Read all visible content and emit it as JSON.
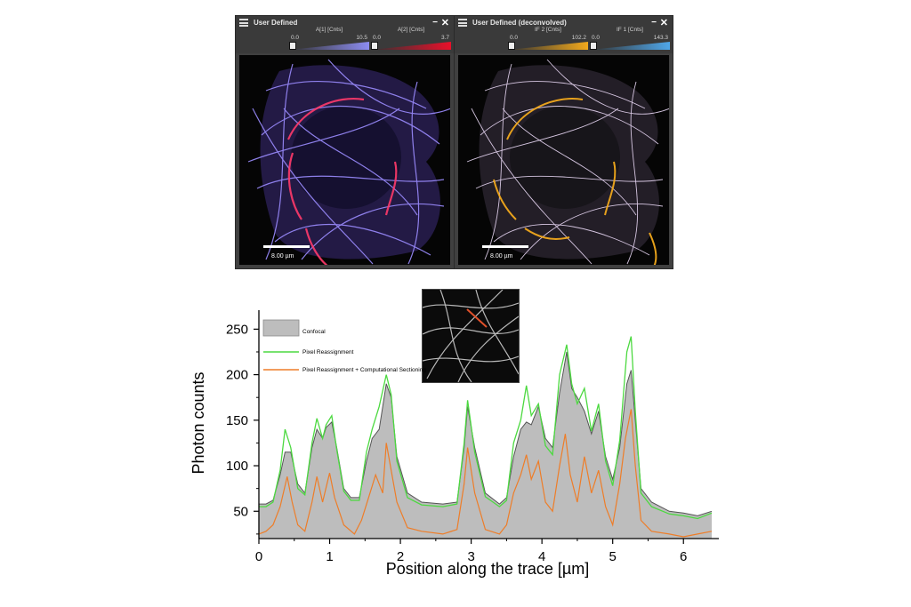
{
  "panels": {
    "left": {
      "title": "User Defined",
      "channels": [
        {
          "label": "A[1] [Cnts]",
          "min": "0.0",
          "max": "10.5",
          "color": "#8c8cf0"
        },
        {
          "label": "A[2] [Cnts]",
          "min": "0.0",
          "max": "3.7",
          "color": "#e8102a"
        }
      ],
      "scale_label": "8.00 µm"
    },
    "right": {
      "title": "User Defined (deconvolved)",
      "channels": [
        {
          "label": "IF 2 [Cnts]",
          "min": "0.0",
          "max": "102.2",
          "color": "#f2a91c"
        },
        {
          "label": "IF 1 [Cnts]",
          "min": "0.0",
          "max": "143.3",
          "color": "#4fa6e8"
        }
      ],
      "scale_label": "8.00 µm"
    }
  },
  "colors": {
    "confocal_fill": "#bdbdbd",
    "confocal_line": "#555555",
    "pixel_reassignment": "#4cd940",
    "computational_sectioning": "#ee7d28",
    "panel_header": "#3a3a3a"
  },
  "chart_data": {
    "type": "area",
    "xlabel": "Position along the trace [µm]",
    "ylabel": "Photon counts",
    "xlim": [
      0,
      6.5
    ],
    "ylim": [
      20,
      265
    ],
    "xticks": [
      0,
      1,
      2,
      3,
      4,
      5,
      6
    ],
    "yticks": [
      50,
      100,
      150,
      200,
      250
    ],
    "legend_position": "top-left",
    "series": [
      {
        "name": "Confocal",
        "style": "filled-area",
        "points": [
          [
            0,
            58
          ],
          [
            0.1,
            58
          ],
          [
            0.2,
            62
          ],
          [
            0.3,
            90
          ],
          [
            0.37,
            115
          ],
          [
            0.45,
            115
          ],
          [
            0.55,
            80
          ],
          [
            0.65,
            70
          ],
          [
            0.75,
            120
          ],
          [
            0.82,
            140
          ],
          [
            0.9,
            130
          ],
          [
            0.95,
            142
          ],
          [
            1.03,
            148
          ],
          [
            1.1,
            120
          ],
          [
            1.2,
            75
          ],
          [
            1.3,
            65
          ],
          [
            1.42,
            65
          ],
          [
            1.52,
            105
          ],
          [
            1.6,
            130
          ],
          [
            1.7,
            140
          ],
          [
            1.8,
            190
          ],
          [
            1.87,
            175
          ],
          [
            1.95,
            110
          ],
          [
            2.1,
            70
          ],
          [
            2.3,
            60
          ],
          [
            2.6,
            58
          ],
          [
            2.8,
            60
          ],
          [
            2.9,
            120
          ],
          [
            2.95,
            165
          ],
          [
            3.05,
            120
          ],
          [
            3.2,
            70
          ],
          [
            3.4,
            58
          ],
          [
            3.5,
            65
          ],
          [
            3.6,
            110
          ],
          [
            3.7,
            140
          ],
          [
            3.78,
            148
          ],
          [
            3.85,
            145
          ],
          [
            3.95,
            165
          ],
          [
            4.05,
            130
          ],
          [
            4.15,
            120
          ],
          [
            4.25,
            180
          ],
          [
            4.35,
            225
          ],
          [
            4.42,
            185
          ],
          [
            4.5,
            175
          ],
          [
            4.6,
            160
          ],
          [
            4.7,
            135
          ],
          [
            4.8,
            160
          ],
          [
            4.9,
            110
          ],
          [
            5.0,
            85
          ],
          [
            5.1,
            120
          ],
          [
            5.2,
            190
          ],
          [
            5.26,
            205
          ],
          [
            5.32,
            150
          ],
          [
            5.4,
            75
          ],
          [
            5.55,
            60
          ],
          [
            5.8,
            50
          ],
          [
            6.0,
            48
          ],
          [
            6.2,
            45
          ],
          [
            6.4,
            50
          ]
        ]
      },
      {
        "name": "Pixel Reassignment",
        "style": "line",
        "points": [
          [
            0,
            55
          ],
          [
            0.1,
            55
          ],
          [
            0.2,
            60
          ],
          [
            0.3,
            95
          ],
          [
            0.37,
            140
          ],
          [
            0.45,
            120
          ],
          [
            0.55,
            75
          ],
          [
            0.65,
            68
          ],
          [
            0.75,
            125
          ],
          [
            0.82,
            152
          ],
          [
            0.9,
            130
          ],
          [
            0.95,
            145
          ],
          [
            1.03,
            155
          ],
          [
            1.1,
            118
          ],
          [
            1.2,
            72
          ],
          [
            1.3,
            62
          ],
          [
            1.42,
            62
          ],
          [
            1.52,
            115
          ],
          [
            1.6,
            140
          ],
          [
            1.7,
            165
          ],
          [
            1.8,
            200
          ],
          [
            1.87,
            178
          ],
          [
            1.95,
            105
          ],
          [
            2.1,
            65
          ],
          [
            2.3,
            57
          ],
          [
            2.6,
            55
          ],
          [
            2.8,
            58
          ],
          [
            2.9,
            125
          ],
          [
            2.95,
            172
          ],
          [
            3.05,
            115
          ],
          [
            3.2,
            66
          ],
          [
            3.4,
            55
          ],
          [
            3.5,
            62
          ],
          [
            3.6,
            125
          ],
          [
            3.7,
            150
          ],
          [
            3.78,
            188
          ],
          [
            3.85,
            155
          ],
          [
            3.95,
            168
          ],
          [
            4.05,
            122
          ],
          [
            4.15,
            112
          ],
          [
            4.25,
            200
          ],
          [
            4.35,
            233
          ],
          [
            4.42,
            190
          ],
          [
            4.5,
            168
          ],
          [
            4.6,
            185
          ],
          [
            4.7,
            138
          ],
          [
            4.8,
            168
          ],
          [
            4.9,
            105
          ],
          [
            5.0,
            78
          ],
          [
            5.1,
            128
          ],
          [
            5.2,
            225
          ],
          [
            5.26,
            242
          ],
          [
            5.32,
            160
          ],
          [
            5.4,
            70
          ],
          [
            5.55,
            55
          ],
          [
            5.8,
            47
          ],
          [
            6.0,
            45
          ],
          [
            6.2,
            42
          ],
          [
            6.4,
            48
          ]
        ]
      },
      {
        "name": "Pixel Reassignment + Computational Sectioning",
        "style": "line",
        "points": [
          [
            0,
            25
          ],
          [
            0.1,
            28
          ],
          [
            0.2,
            35
          ],
          [
            0.3,
            55
          ],
          [
            0.4,
            88
          ],
          [
            0.47,
            60
          ],
          [
            0.55,
            35
          ],
          [
            0.65,
            28
          ],
          [
            0.75,
            60
          ],
          [
            0.82,
            88
          ],
          [
            0.9,
            60
          ],
          [
            1.0,
            92
          ],
          [
            1.07,
            65
          ],
          [
            1.2,
            35
          ],
          [
            1.35,
            25
          ],
          [
            1.45,
            40
          ],
          [
            1.55,
            65
          ],
          [
            1.65,
            90
          ],
          [
            1.75,
            70
          ],
          [
            1.8,
            125
          ],
          [
            1.87,
            95
          ],
          [
            1.95,
            60
          ],
          [
            2.1,
            32
          ],
          [
            2.3,
            28
          ],
          [
            2.6,
            25
          ],
          [
            2.8,
            30
          ],
          [
            2.9,
            80
          ],
          [
            2.95,
            120
          ],
          [
            3.05,
            70
          ],
          [
            3.2,
            30
          ],
          [
            3.4,
            25
          ],
          [
            3.5,
            35
          ],
          [
            3.6,
            70
          ],
          [
            3.7,
            90
          ],
          [
            3.78,
            112
          ],
          [
            3.85,
            85
          ],
          [
            3.95,
            105
          ],
          [
            4.05,
            60
          ],
          [
            4.15,
            50
          ],
          [
            4.25,
            100
          ],
          [
            4.33,
            135
          ],
          [
            4.4,
            90
          ],
          [
            4.5,
            60
          ],
          [
            4.6,
            110
          ],
          [
            4.7,
            70
          ],
          [
            4.8,
            95
          ],
          [
            4.9,
            55
          ],
          [
            5.0,
            35
          ],
          [
            5.1,
            80
          ],
          [
            5.18,
            130
          ],
          [
            5.26,
            162
          ],
          [
            5.32,
            100
          ],
          [
            5.4,
            40
          ],
          [
            5.55,
            28
          ],
          [
            5.8,
            25
          ],
          [
            6.0,
            22
          ],
          [
            6.2,
            25
          ],
          [
            6.4,
            28
          ]
        ]
      }
    ]
  }
}
